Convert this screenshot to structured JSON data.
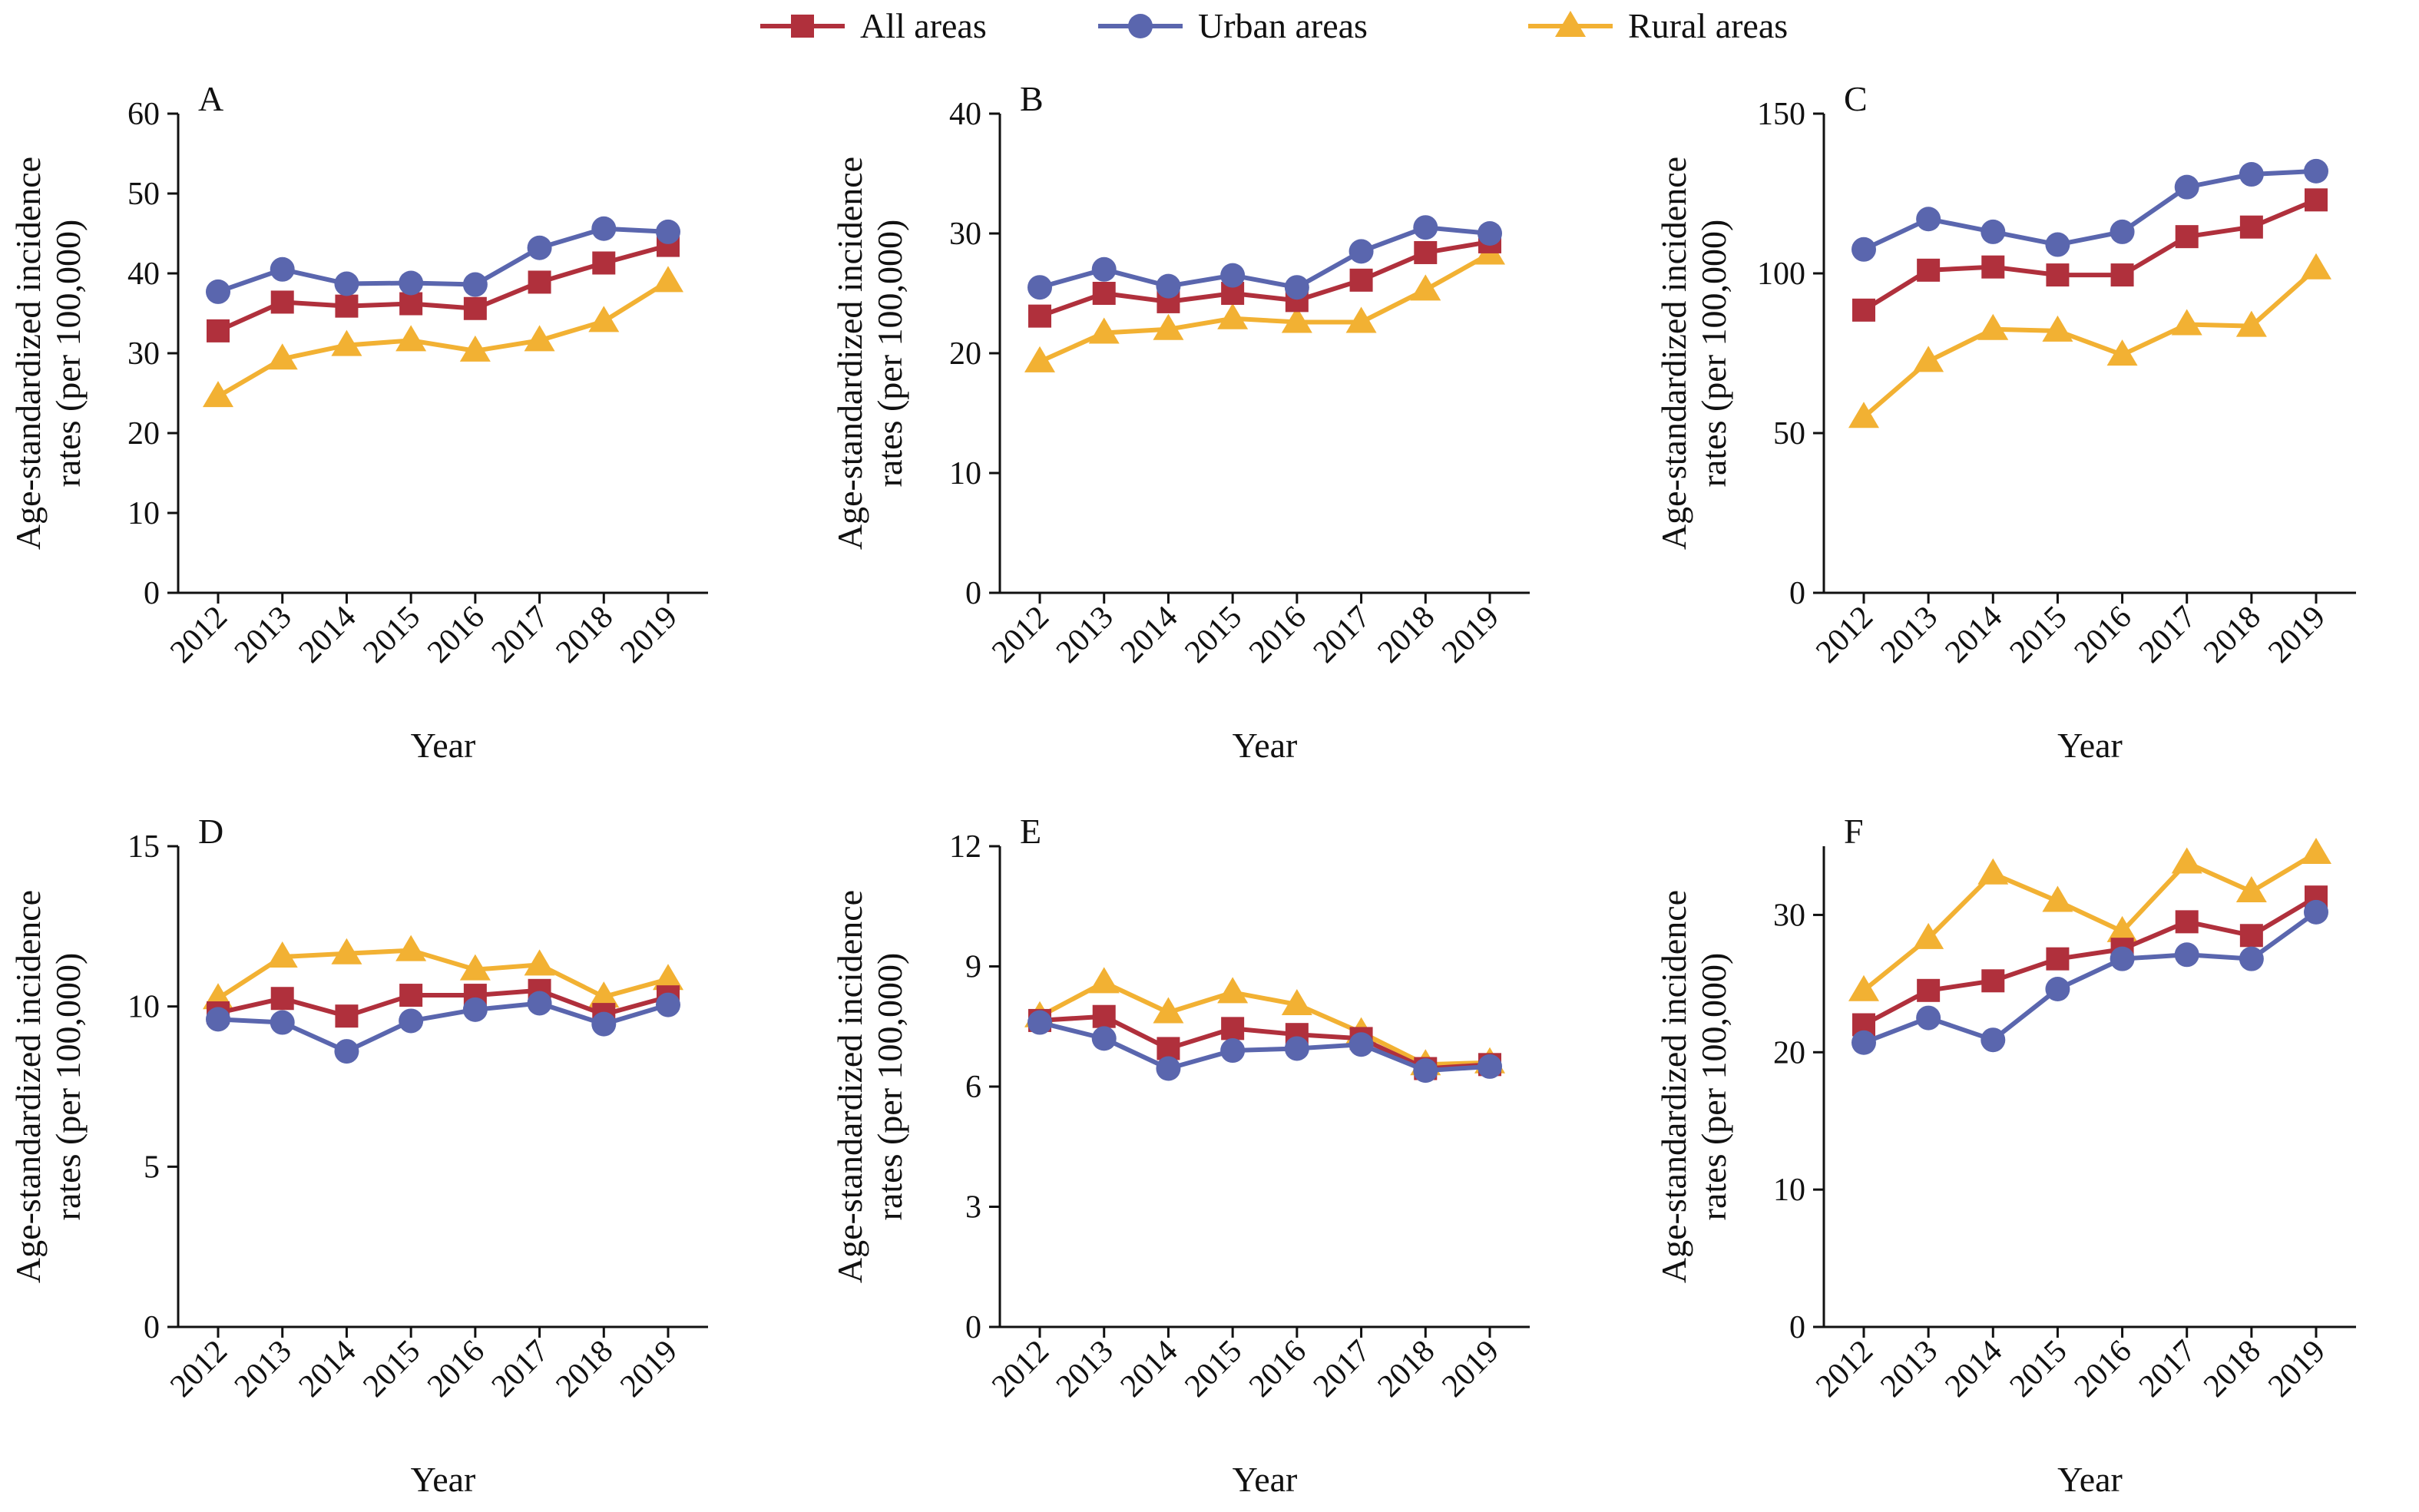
{
  "colors": {
    "all_areas": "#B0303C",
    "urban_areas": "#5A66AE",
    "rural_areas": "#F2B133"
  },
  "legend": [
    {
      "key": "all",
      "label": "All areas",
      "marker": "square",
      "color": "#B0303C"
    },
    {
      "key": "urban",
      "label": "Urban areas",
      "marker": "circle",
      "color": "#5A66AE"
    },
    {
      "key": "rural",
      "label": "Rural areas",
      "marker": "triangle",
      "color": "#F2B133"
    }
  ],
  "chart_data": [
    {
      "type": "line",
      "panel": "A",
      "xlabel": "Year",
      "ylabel": [
        "Age-standardized incidence",
        "rates (per 100,000)"
      ],
      "categories": [
        "2012",
        "2013",
        "2014",
        "2015",
        "2016",
        "2017",
        "2018",
        "2019"
      ],
      "ylim": [
        0,
        60
      ],
      "yticks": [
        0,
        10,
        20,
        30,
        40,
        50,
        60
      ],
      "series": [
        {
          "name": "All areas",
          "key": "all",
          "values": [
            32.8,
            36.4,
            35.9,
            36.2,
            35.6,
            38.9,
            41.3,
            43.5
          ]
        },
        {
          "name": "Urban areas",
          "key": "urban",
          "values": [
            37.7,
            40.5,
            38.7,
            38.8,
            38.6,
            43.2,
            45.6,
            45.2
          ]
        },
        {
          "name": "Rural areas",
          "key": "rural",
          "values": [
            24.6,
            29.3,
            31.0,
            31.6,
            30.3,
            31.6,
            34.0,
            39.0
          ]
        }
      ]
    },
    {
      "type": "line",
      "panel": "B",
      "xlabel": "Year",
      "ylabel": [
        "Age-standardized incidence",
        "rates (per 100,000)"
      ],
      "categories": [
        "2012",
        "2013",
        "2014",
        "2015",
        "2016",
        "2017",
        "2018",
        "2019"
      ],
      "ylim": [
        0,
        40
      ],
      "yticks": [
        0,
        10,
        20,
        30,
        40
      ],
      "series": [
        {
          "name": "All areas",
          "key": "all",
          "values": [
            23.1,
            25.0,
            24.3,
            25.0,
            24.4,
            26.1,
            28.4,
            29.3
          ]
        },
        {
          "name": "Urban areas",
          "key": "urban",
          "values": [
            25.5,
            27.0,
            25.6,
            26.5,
            25.5,
            28.5,
            30.5,
            30.0
          ]
        },
        {
          "name": "Rural areas",
          "key": "rural",
          "values": [
            19.3,
            21.7,
            22.0,
            22.9,
            22.6,
            22.6,
            25.3,
            28.3
          ]
        }
      ]
    },
    {
      "type": "line",
      "panel": "C",
      "xlabel": "Year",
      "ylabel": [
        "Age-standardized incidence",
        "rates (per 100,000)"
      ],
      "categories": [
        "2012",
        "2013",
        "2014",
        "2015",
        "2016",
        "2017",
        "2018",
        "2019"
      ],
      "ylim": [
        0,
        150
      ],
      "yticks": [
        0,
        50,
        100,
        150
      ],
      "series": [
        {
          "name": "All areas",
          "key": "all",
          "values": [
            88.5,
            101.0,
            102.0,
            99.5,
            99.5,
            111.5,
            114.5,
            123.0
          ]
        },
        {
          "name": "Urban areas",
          "key": "urban",
          "values": [
            107.5,
            117.0,
            113.0,
            109.0,
            113.0,
            127.0,
            131.0,
            132.0
          ]
        },
        {
          "name": "Rural areas",
          "key": "rural",
          "values": [
            55.0,
            72.5,
            82.5,
            82.0,
            74.5,
            84.0,
            83.5,
            101.5
          ]
        }
      ]
    },
    {
      "type": "line",
      "panel": "D",
      "xlabel": "Year",
      "ylabel": [
        "Age-standardized incidence",
        "rates (per 100,000)"
      ],
      "categories": [
        "2012",
        "2013",
        "2014",
        "2015",
        "2016",
        "2017",
        "2018",
        "2019"
      ],
      "ylim": [
        0,
        15
      ],
      "yticks": [
        0,
        5,
        10,
        15
      ],
      "series": [
        {
          "name": "All areas",
          "key": "all",
          "values": [
            9.8,
            10.25,
            9.7,
            10.35,
            10.35,
            10.5,
            9.75,
            10.3
          ]
        },
        {
          "name": "Urban areas",
          "key": "urban",
          "values": [
            9.6,
            9.5,
            8.6,
            9.55,
            9.9,
            10.1,
            9.45,
            10.05
          ]
        },
        {
          "name": "Rural areas",
          "key": "rural",
          "values": [
            10.25,
            11.55,
            11.65,
            11.75,
            11.15,
            11.3,
            10.3,
            10.85
          ]
        }
      ]
    },
    {
      "type": "line",
      "panel": "E",
      "xlabel": "Year",
      "ylabel": [
        "Age-standardized incidence",
        "rates (per 100,000)"
      ],
      "categories": [
        "2012",
        "2013",
        "2014",
        "2015",
        "2016",
        "2017",
        "2018",
        "2019"
      ],
      "ylim": [
        0,
        12
      ],
      "yticks": [
        0,
        3,
        6,
        9,
        12
      ],
      "series": [
        {
          "name": "All areas",
          "key": "all",
          "values": [
            7.65,
            7.75,
            6.95,
            7.45,
            7.3,
            7.2,
            6.45,
            6.55
          ]
        },
        {
          "name": "Urban areas",
          "key": "urban",
          "values": [
            7.6,
            7.2,
            6.45,
            6.9,
            6.95,
            7.05,
            6.4,
            6.5
          ]
        },
        {
          "name": "Rural areas",
          "key": "rural",
          "values": [
            7.75,
            8.6,
            7.85,
            8.35,
            8.05,
            7.35,
            6.55,
            6.6
          ]
        }
      ]
    },
    {
      "type": "line",
      "panel": "F",
      "xlabel": "Year",
      "ylabel": [
        "Age-standardized incidence",
        "rates (per 100,000)"
      ],
      "categories": [
        "2012",
        "2013",
        "2014",
        "2015",
        "2016",
        "2017",
        "2018",
        "2019"
      ],
      "ylim": [
        0,
        35
      ],
      "yticks": [
        0,
        10,
        20,
        30
      ],
      "series": [
        {
          "name": "All areas",
          "key": "all",
          "values": [
            22.0,
            24.5,
            25.2,
            26.8,
            27.5,
            29.5,
            28.5,
            31.3
          ]
        },
        {
          "name": "Urban areas",
          "key": "urban",
          "values": [
            20.7,
            22.5,
            20.9,
            24.6,
            26.8,
            27.1,
            26.8,
            30.2
          ]
        },
        {
          "name": "Rural areas",
          "key": "rural",
          "values": [
            24.5,
            28.3,
            33.0,
            31.0,
            28.8,
            33.8,
            31.7,
            34.5
          ]
        }
      ]
    }
  ]
}
